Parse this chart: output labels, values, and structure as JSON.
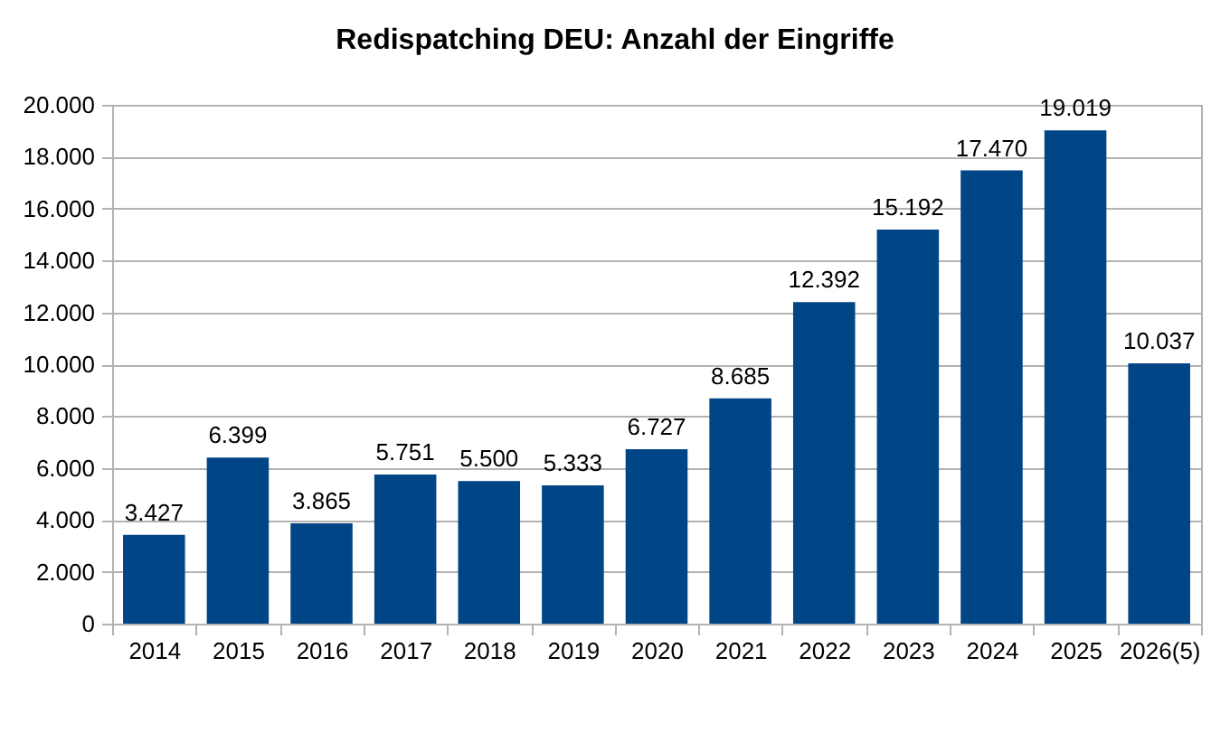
{
  "chart_data": {
    "type": "bar",
    "title": "Redispatching DEU: Anzahl der Eingriffe",
    "categories": [
      "2014",
      "2015",
      "2016",
      "2017",
      "2018",
      "2019",
      "2020",
      "2021",
      "2022",
      "2023",
      "2024",
      "2025",
      "2026(5)"
    ],
    "values": [
      3427,
      6399,
      3865,
      5751,
      5500,
      5333,
      6727,
      8685,
      12392,
      15192,
      17470,
      19019,
      10037
    ],
    "value_labels": [
      "3.427",
      "6.399",
      "3.865",
      "5.751",
      "5.500",
      "5.333",
      "6.727",
      "8.685",
      "12.392",
      "15.192",
      "17.470",
      "19.019",
      "10.037"
    ],
    "color": "#004586",
    "ylim": [
      0,
      20000
    ],
    "yticks": [
      0,
      {
        "value": 2000,
        "label": "2.000"
      },
      {
        "value": 4000,
        "label": "4.000"
      },
      {
        "value": 6000,
        "label": "6.000"
      },
      {
        "value": 8000,
        "label": "8.000"
      },
      {
        "value": 10000,
        "label": "10.000"
      },
      {
        "value": 12000,
        "label": "12.000"
      },
      {
        "value": 14000,
        "label": "14.000"
      },
      {
        "value": 16000,
        "label": "16.000"
      },
      {
        "value": 18000,
        "label": "18.000"
      },
      {
        "value": 20000,
        "label": "20.000"
      }
    ],
    "grid": "y"
  }
}
